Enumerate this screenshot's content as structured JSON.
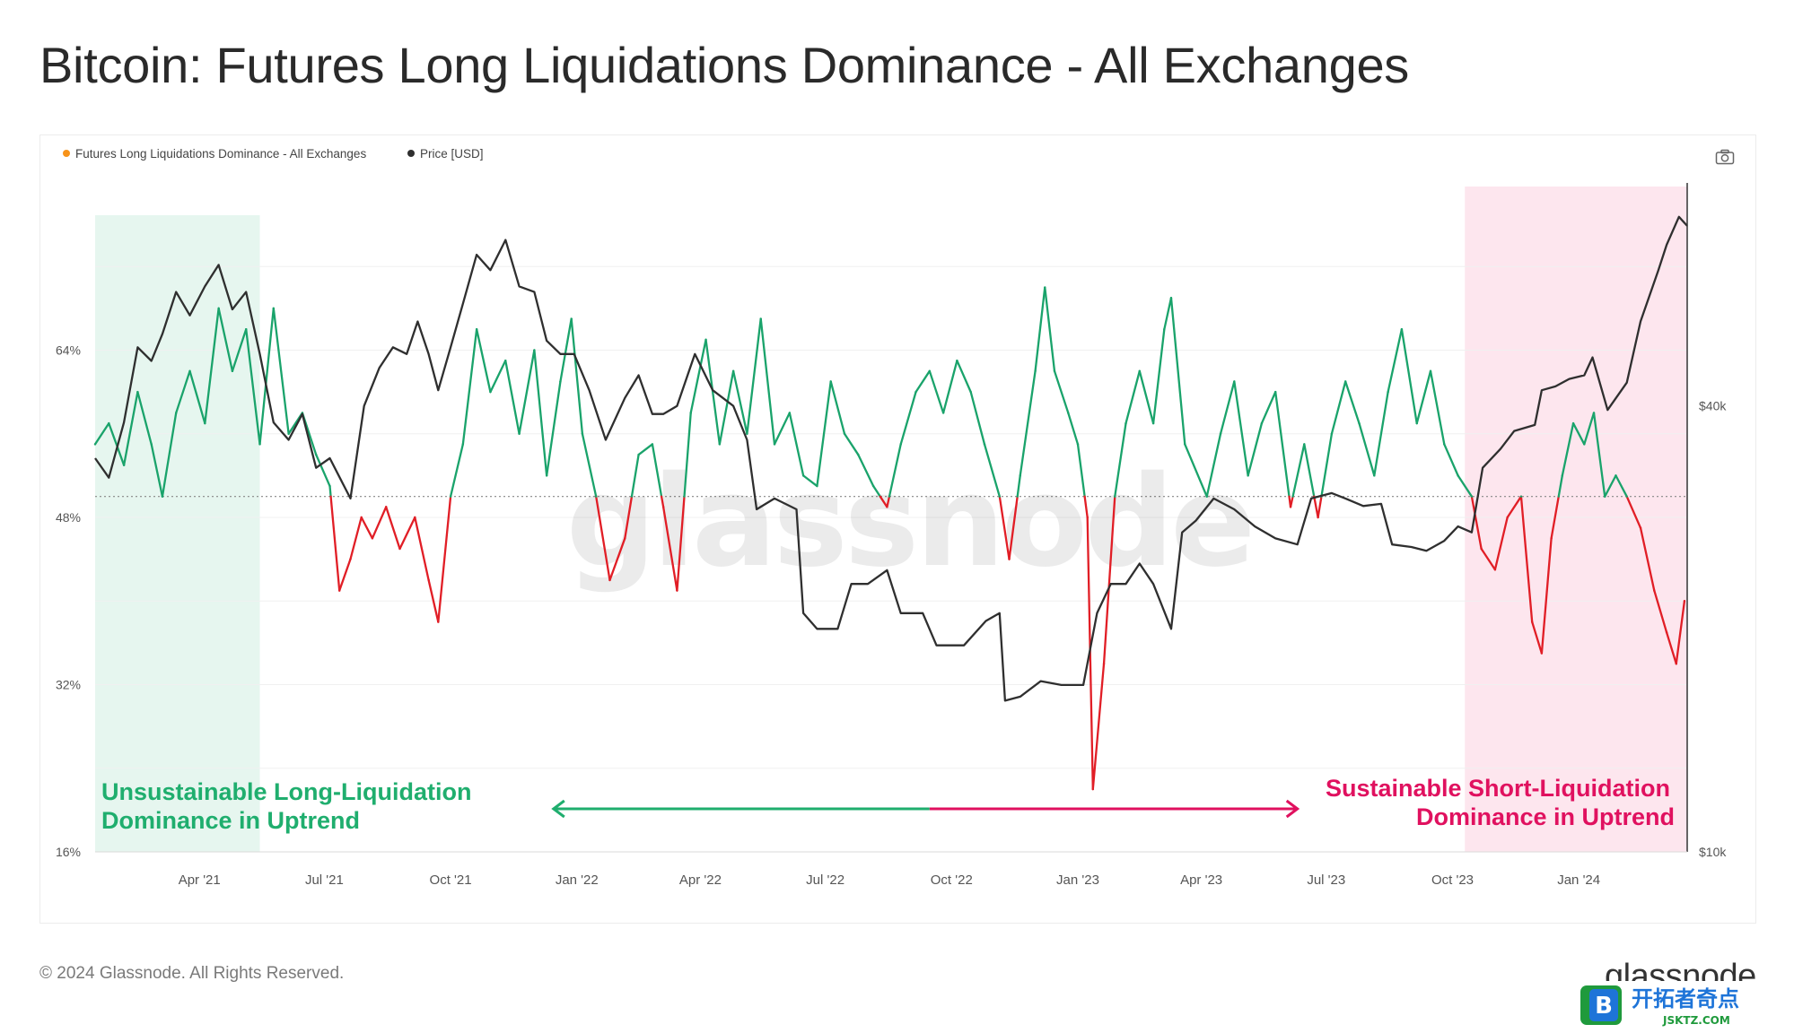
{
  "page": {
    "title": "Bitcoin: Futures Long Liquidations Dominance - All Exchanges",
    "copyright": "© 2024 Glassnode. All Rights Reserved.",
    "brand": "glassnode",
    "watermark": "glassnode",
    "site_badge": {
      "text": "开拓者奇点",
      "url": "JSKTZ.COM",
      "letter": "B"
    }
  },
  "colors": {
    "above": "#1aa36b",
    "below": "#e11e26",
    "price": "#2f2f2f",
    "green_band": "#e6f6ef",
    "pink_band": "#fde6ee",
    "annotation_green": "#1fae6e",
    "annotation_pink": "#e0115f",
    "legend_orange": "#f7931a"
  },
  "chart_data": {
    "type": "line",
    "legend": [
      {
        "name": "Futures Long Liquidations Dominance - All Exchanges",
        "color": "#f7931a"
      },
      {
        "name": "Price [USD]",
        "color": "#2f2f2f"
      }
    ],
    "x_range": [
      "2021-01-15",
      "2024-03-20"
    ],
    "x_ticks": [
      {
        "date": "2021-04-01",
        "label": "Apr '21"
      },
      {
        "date": "2021-07-01",
        "label": "Jul '21"
      },
      {
        "date": "2021-10-01",
        "label": "Oct '21"
      },
      {
        "date": "2022-01-01",
        "label": "Jan '22"
      },
      {
        "date": "2022-04-01",
        "label": "Apr '22"
      },
      {
        "date": "2022-07-01",
        "label": "Jul '22"
      },
      {
        "date": "2022-10-01",
        "label": "Oct '22"
      },
      {
        "date": "2023-01-01",
        "label": "Jan '23"
      },
      {
        "date": "2023-04-01",
        "label": "Apr '23"
      },
      {
        "date": "2023-07-01",
        "label": "Jul '23"
      },
      {
        "date": "2023-10-01",
        "label": "Oct '23"
      },
      {
        "date": "2024-01-01",
        "label": "Jan '24"
      }
    ],
    "y_left": {
      "min": 16,
      "max": 80,
      "ticks": [
        16,
        32,
        48,
        64
      ],
      "tick_labels": [
        "16%",
        "32%",
        "48%",
        "64%"
      ],
      "unit": "%"
    },
    "y_right": {
      "scale": "log",
      "min": 10000,
      "max": 80000,
      "ticks": [
        10000,
        40000
      ],
      "tick_labels": [
        "$10k",
        "$40k"
      ]
    },
    "threshold": 50,
    "dominance_series": {
      "name": "Futures Long Liquidations Dominance - All Exchanges",
      "points": [
        [
          "2021-01-15",
          55
        ],
        [
          "2021-01-25",
          57
        ],
        [
          "2021-02-05",
          53
        ],
        [
          "2021-02-15",
          60
        ],
        [
          "2021-02-25",
          55
        ],
        [
          "2021-03-05",
          50
        ],
        [
          "2021-03-15",
          58
        ],
        [
          "2021-03-25",
          62
        ],
        [
          "2021-04-05",
          57
        ],
        [
          "2021-04-15",
          68
        ],
        [
          "2021-04-25",
          62
        ],
        [
          "2021-05-05",
          66
        ],
        [
          "2021-05-15",
          55
        ],
        [
          "2021-05-25",
          68
        ],
        [
          "2021-06-05",
          56
        ],
        [
          "2021-06-15",
          58
        ],
        [
          "2021-06-25",
          54
        ],
        [
          "2021-07-05",
          51
        ],
        [
          "2021-07-12",
          41
        ],
        [
          "2021-07-20",
          44
        ],
        [
          "2021-07-28",
          48
        ],
        [
          "2021-08-05",
          46
        ],
        [
          "2021-08-15",
          49
        ],
        [
          "2021-08-25",
          45
        ],
        [
          "2021-09-05",
          48
        ],
        [
          "2021-09-15",
          42
        ],
        [
          "2021-09-22",
          38
        ],
        [
          "2021-10-01",
          50
        ],
        [
          "2021-10-10",
          55
        ],
        [
          "2021-10-20",
          66
        ],
        [
          "2021-10-30",
          60
        ],
        [
          "2021-11-10",
          63
        ],
        [
          "2021-11-20",
          56
        ],
        [
          "2021-12-01",
          64
        ],
        [
          "2021-12-10",
          52
        ],
        [
          "2021-12-20",
          61
        ],
        [
          "2021-12-28",
          67
        ],
        [
          "2022-01-05",
          56
        ],
        [
          "2022-01-15",
          50
        ],
        [
          "2022-01-25",
          42
        ],
        [
          "2022-02-05",
          46
        ],
        [
          "2022-02-15",
          54
        ],
        [
          "2022-02-25",
          55
        ],
        [
          "2022-03-05",
          49
        ],
        [
          "2022-03-15",
          41
        ],
        [
          "2022-03-25",
          58
        ],
        [
          "2022-04-05",
          65
        ],
        [
          "2022-04-15",
          55
        ],
        [
          "2022-04-25",
          62
        ],
        [
          "2022-05-05",
          56
        ],
        [
          "2022-05-15",
          67
        ],
        [
          "2022-05-25",
          55
        ],
        [
          "2022-06-05",
          58
        ],
        [
          "2022-06-15",
          52
        ],
        [
          "2022-06-25",
          51
        ],
        [
          "2022-07-05",
          61
        ],
        [
          "2022-07-15",
          56
        ],
        [
          "2022-07-25",
          54
        ],
        [
          "2022-08-05",
          51
        ],
        [
          "2022-08-15",
          49
        ],
        [
          "2022-08-25",
          55
        ],
        [
          "2022-09-05",
          60
        ],
        [
          "2022-09-15",
          62
        ],
        [
          "2022-09-25",
          58
        ],
        [
          "2022-10-05",
          63
        ],
        [
          "2022-10-15",
          60
        ],
        [
          "2022-10-25",
          55
        ],
        [
          "2022-11-05",
          50
        ],
        [
          "2022-11-12",
          44
        ],
        [
          "2022-11-20",
          52
        ],
        [
          "2022-12-01",
          62
        ],
        [
          "2022-12-08",
          70
        ],
        [
          "2022-12-15",
          62
        ],
        [
          "2022-12-25",
          58
        ],
        [
          "2023-01-01",
          55
        ],
        [
          "2023-01-08",
          48
        ],
        [
          "2023-01-12",
          22
        ],
        [
          "2023-01-20",
          34
        ],
        [
          "2023-01-28",
          50
        ],
        [
          "2023-02-05",
          57
        ],
        [
          "2023-02-15",
          62
        ],
        [
          "2023-02-25",
          57
        ],
        [
          "2023-03-05",
          66
        ],
        [
          "2023-03-10",
          69
        ],
        [
          "2023-03-20",
          55
        ],
        [
          "2023-04-05",
          50
        ],
        [
          "2023-04-15",
          56
        ],
        [
          "2023-04-25",
          61
        ],
        [
          "2023-05-05",
          52
        ],
        [
          "2023-05-15",
          57
        ],
        [
          "2023-05-25",
          60
        ],
        [
          "2023-06-05",
          49
        ],
        [
          "2023-06-15",
          55
        ],
        [
          "2023-06-25",
          48
        ],
        [
          "2023-07-05",
          56
        ],
        [
          "2023-07-15",
          61
        ],
        [
          "2023-07-25",
          57
        ],
        [
          "2023-08-05",
          52
        ],
        [
          "2023-08-15",
          60
        ],
        [
          "2023-08-25",
          66
        ],
        [
          "2023-09-05",
          57
        ],
        [
          "2023-09-15",
          62
        ],
        [
          "2023-09-25",
          55
        ],
        [
          "2023-10-05",
          52
        ],
        [
          "2023-10-15",
          50
        ],
        [
          "2023-10-22",
          45
        ],
        [
          "2023-11-01",
          43
        ],
        [
          "2023-11-10",
          48
        ],
        [
          "2023-11-20",
          50
        ],
        [
          "2023-11-28",
          38
        ],
        [
          "2023-12-05",
          35
        ],
        [
          "2023-12-12",
          46
        ],
        [
          "2023-12-20",
          52
        ],
        [
          "2023-12-28",
          57
        ],
        [
          "2024-01-05",
          55
        ],
        [
          "2024-01-12",
          58
        ],
        [
          "2024-01-20",
          50
        ],
        [
          "2024-01-28",
          52
        ],
        [
          "2024-02-05",
          50
        ],
        [
          "2024-02-15",
          47
        ],
        [
          "2024-02-25",
          41
        ],
        [
          "2024-03-05",
          37
        ],
        [
          "2024-03-12",
          34
        ],
        [
          "2024-03-18",
          40
        ]
      ]
    },
    "price_series": {
      "name": "Price [USD]",
      "points": [
        [
          "2021-01-15",
          34000
        ],
        [
          "2021-01-25",
          32000
        ],
        [
          "2021-02-05",
          38000
        ],
        [
          "2021-02-15",
          48000
        ],
        [
          "2021-02-25",
          46000
        ],
        [
          "2021-03-05",
          50000
        ],
        [
          "2021-03-15",
          57000
        ],
        [
          "2021-03-25",
          53000
        ],
        [
          "2021-04-05",
          58000
        ],
        [
          "2021-04-15",
          62000
        ],
        [
          "2021-04-25",
          54000
        ],
        [
          "2021-05-05",
          57000
        ],
        [
          "2021-05-15",
          47000
        ],
        [
          "2021-05-25",
          38000
        ],
        [
          "2021-06-05",
          36000
        ],
        [
          "2021-06-15",
          39000
        ],
        [
          "2021-06-25",
          33000
        ],
        [
          "2021-07-05",
          34000
        ],
        [
          "2021-07-20",
          30000
        ],
        [
          "2021-07-30",
          40000
        ],
        [
          "2021-08-10",
          45000
        ],
        [
          "2021-08-20",
          48000
        ],
        [
          "2021-08-30",
          47000
        ],
        [
          "2021-09-07",
          52000
        ],
        [
          "2021-09-15",
          47000
        ],
        [
          "2021-09-22",
          42000
        ],
        [
          "2021-10-01",
          48000
        ],
        [
          "2021-10-10",
          55000
        ],
        [
          "2021-10-20",
          64000
        ],
        [
          "2021-10-30",
          61000
        ],
        [
          "2021-11-10",
          67000
        ],
        [
          "2021-11-20",
          58000
        ],
        [
          "2021-12-01",
          57000
        ],
        [
          "2021-12-10",
          49000
        ],
        [
          "2021-12-20",
          47000
        ],
        [
          "2021-12-30",
          47000
        ],
        [
          "2022-01-10",
          42000
        ],
        [
          "2022-01-22",
          36000
        ],
        [
          "2022-02-05",
          41000
        ],
        [
          "2022-02-15",
          44000
        ],
        [
          "2022-02-25",
          39000
        ],
        [
          "2022-03-05",
          39000
        ],
        [
          "2022-03-15",
          40000
        ],
        [
          "2022-03-28",
          47000
        ],
        [
          "2022-04-10",
          42000
        ],
        [
          "2022-04-25",
          40000
        ],
        [
          "2022-05-05",
          36000
        ],
        [
          "2022-05-12",
          29000
        ],
        [
          "2022-05-25",
          30000
        ],
        [
          "2022-06-10",
          29000
        ],
        [
          "2022-06-15",
          21000
        ],
        [
          "2022-06-25",
          20000
        ],
        [
          "2022-07-10",
          20000
        ],
        [
          "2022-07-20",
          23000
        ],
        [
          "2022-08-01",
          23000
        ],
        [
          "2022-08-15",
          24000
        ],
        [
          "2022-08-25",
          21000
        ],
        [
          "2022-09-10",
          21000
        ],
        [
          "2022-09-20",
          19000
        ],
        [
          "2022-10-10",
          19000
        ],
        [
          "2022-10-26",
          20500
        ],
        [
          "2022-11-05",
          21000
        ],
        [
          "2022-11-09",
          16000
        ],
        [
          "2022-11-20",
          16200
        ],
        [
          "2022-12-05",
          17000
        ],
        [
          "2022-12-20",
          16800
        ],
        [
          "2023-01-05",
          16800
        ],
        [
          "2023-01-15",
          21000
        ],
        [
          "2023-01-25",
          23000
        ],
        [
          "2023-02-05",
          23000
        ],
        [
          "2023-02-15",
          24500
        ],
        [
          "2023-02-25",
          23000
        ],
        [
          "2023-03-10",
          20000
        ],
        [
          "2023-03-18",
          27000
        ],
        [
          "2023-03-28",
          28000
        ],
        [
          "2023-04-10",
          30000
        ],
        [
          "2023-04-25",
          29000
        ],
        [
          "2023-05-10",
          27500
        ],
        [
          "2023-05-25",
          26500
        ],
        [
          "2023-06-10",
          26000
        ],
        [
          "2023-06-20",
          30000
        ],
        [
          "2023-07-05",
          30500
        ],
        [
          "2023-07-15",
          30000
        ],
        [
          "2023-07-28",
          29300
        ],
        [
          "2023-08-10",
          29500
        ],
        [
          "2023-08-18",
          26000
        ],
        [
          "2023-09-01",
          25800
        ],
        [
          "2023-09-12",
          25500
        ],
        [
          "2023-09-25",
          26300
        ],
        [
          "2023-10-05",
          27500
        ],
        [
          "2023-10-15",
          27000
        ],
        [
          "2023-10-23",
          33000
        ],
        [
          "2023-11-05",
          35000
        ],
        [
          "2023-11-15",
          37000
        ],
        [
          "2023-11-30",
          37700
        ],
        [
          "2023-12-05",
          42000
        ],
        [
          "2023-12-15",
          42500
        ],
        [
          "2023-12-25",
          43500
        ],
        [
          "2024-01-05",
          44000
        ],
        [
          "2024-01-11",
          46500
        ],
        [
          "2024-01-22",
          39500
        ],
        [
          "2024-02-05",
          43000
        ],
        [
          "2024-02-15",
          52000
        ],
        [
          "2024-02-28",
          61000
        ],
        [
          "2024-03-05",
          66000
        ],
        [
          "2024-03-14",
          72000
        ],
        [
          "2024-03-20",
          70000
        ]
      ]
    },
    "annotations": [
      {
        "region": [
          "2021-01-15",
          "2021-05-15"
        ],
        "color": "#e6f6ef",
        "text": [
          "Unsustainable Long-Liquidation",
          "Dominance in Uptrend"
        ],
        "text_color": "#1fae6e"
      },
      {
        "region": [
          "2023-10-10",
          "2024-03-20"
        ],
        "color": "#fde6ee",
        "text": [
          "Sustainable Short-Liquidation",
          "Dominance in Uptrend"
        ],
        "text_color": "#e0115f"
      }
    ],
    "arrow": {
      "from": "2021-12-15",
      "mid": "2022-09-15",
      "to": "2023-06-10"
    }
  }
}
